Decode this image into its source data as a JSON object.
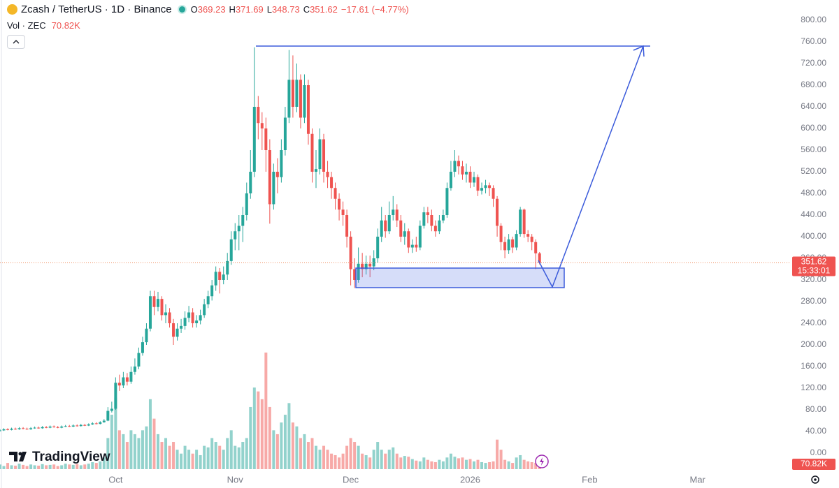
{
  "brand": "TradingView",
  "chart_data": {
    "type": "candlestick",
    "title": "Zcash / TetherUS · 1D · Binance",
    "ohlc_letters": [
      "O",
      "H",
      "L",
      "C"
    ],
    "change": "−17.61 (−4.77%)",
    "countdown": "15:33:01",
    "up_color": "#26a69a",
    "down_color": "#ef5350",
    "grid": false,
    "xlim": [
      0,
      205
    ],
    "xticks": [
      {
        "value": 30,
        "label": "Oct"
      },
      {
        "value": 61,
        "label": "Nov"
      },
      {
        "value": 91,
        "label": "Dec"
      },
      {
        "value": 122,
        "label": "2026"
      },
      {
        "value": 153,
        "label": "Feb"
      },
      {
        "value": 181,
        "label": "Mar"
      }
    ],
    "ylim": [
      0,
      800
    ],
    "yticks": [
      {
        "value": 0,
        "label": "0.00"
      },
      {
        "value": 40,
        "label": "40.00"
      },
      {
        "value": 80,
        "label": "80.00"
      },
      {
        "value": 120,
        "label": "120.00"
      },
      {
        "value": 160,
        "label": "160.00"
      },
      {
        "value": 200,
        "label": "200.00"
      },
      {
        "value": 240,
        "label": "240.00"
      },
      {
        "value": 280,
        "label": "280.00"
      },
      {
        "value": 320,
        "label": "320.00"
      },
      {
        "value": 360,
        "label": "360.00"
      },
      {
        "value": 400,
        "label": "400.00"
      },
      {
        "value": 440,
        "label": "440.00"
      },
      {
        "value": 480,
        "label": "480.00"
      },
      {
        "value": 520,
        "label": "520.00"
      },
      {
        "value": 560,
        "label": "560.00"
      },
      {
        "value": 600,
        "label": "600.00"
      },
      {
        "value": 640,
        "label": "640.00"
      },
      {
        "value": 680,
        "label": "680.00"
      },
      {
        "value": 720,
        "label": "720.00"
      },
      {
        "value": 760,
        "label": "760.00"
      },
      {
        "value": 800,
        "label": "800.00"
      }
    ],
    "candles": {
      "open": [
        41,
        42,
        44,
        43,
        45,
        44,
        46,
        45,
        44,
        46,
        47,
        46,
        48,
        47,
        49,
        48,
        47,
        49,
        50,
        49,
        51,
        50,
        52,
        51,
        53,
        55,
        54,
        57,
        60,
        78,
        82,
        130,
        125,
        140,
        132,
        150,
        160,
        185,
        205,
        230,
        290,
        270,
        285,
        255,
        260,
        240,
        215,
        230,
        235,
        250,
        260,
        240,
        245,
        255,
        275,
        290,
        310,
        335,
        320,
        330,
        355,
        395,
        410,
        420,
        440,
        480,
        520,
        640,
        610,
        600,
        560,
        460,
        520,
        510,
        560,
        620,
        690,
        640,
        690,
        620,
        680,
        590,
        520,
        525,
        580,
        520,
        510,
        490,
        470,
        450,
        440,
        400,
        340,
        320,
        350,
        340,
        350,
        345,
        360,
        400,
        430,
        410,
        440,
        450,
        430,
        400,
        410,
        380,
        385,
        380,
        420,
        445,
        440,
        420,
        410,
        430,
        440,
        490,
        520,
        540,
        530,
        515,
        520,
        500,
        510,
        485,
        490,
        495,
        490,
        470,
        420,
        390,
        375,
        395,
        380,
        405,
        450,
        405,
        400,
        390,
        369.23
      ],
      "high": [
        44,
        46,
        46,
        47,
        47,
        48,
        48,
        47,
        48,
        49,
        49,
        50,
        50,
        51,
        51,
        50,
        51,
        52,
        52,
        53,
        53,
        54,
        54,
        55,
        57,
        57,
        59,
        63,
        85,
        95,
        140,
        145,
        150,
        148,
        160,
        175,
        195,
        215,
        240,
        300,
        300,
        298,
        290,
        275,
        268,
        248,
        240,
        248,
        262,
        272,
        268,
        255,
        265,
        285,
        300,
        320,
        345,
        342,
        345,
        370,
        410,
        425,
        440,
        455,
        500,
        560,
        750,
        660,
        630,
        620,
        580,
        535,
        545,
        580,
        640,
        745,
        735,
        720,
        700,
        700,
        690,
        600,
        560,
        600,
        590,
        540,
        520,
        500,
        480,
        465,
        450,
        410,
        360,
        380,
        370,
        365,
        365,
        375,
        415,
        455,
        440,
        465,
        475,
        460,
        440,
        425,
        415,
        395,
        400,
        430,
        455,
        455,
        450,
        430,
        440,
        450,
        500,
        540,
        560,
        550,
        540,
        535,
        530,
        520,
        515,
        500,
        505,
        500,
        495,
        475,
        425,
        400,
        405,
        400,
        412,
        455,
        452,
        412,
        405,
        395,
        371.69
      ],
      "low": [
        40,
        41,
        42,
        42,
        43,
        43,
        44,
        43,
        43,
        45,
        45,
        45,
        46,
        46,
        47,
        46,
        46,
        48,
        48,
        48,
        49,
        49,
        50,
        50,
        52,
        53,
        53,
        56,
        59,
        75,
        80,
        115,
        120,
        125,
        128,
        145,
        155,
        180,
        200,
        225,
        255,
        262,
        245,
        240,
        232,
        200,
        208,
        222,
        228,
        242,
        232,
        232,
        238,
        250,
        268,
        282,
        300,
        295,
        312,
        320,
        348,
        375,
        375,
        390,
        430,
        470,
        510,
        580,
        560,
        520,
        424,
        450,
        480,
        500,
        550,
        610,
        620,
        630,
        600,
        610,
        570,
        500,
        490,
        515,
        500,
        490,
        470,
        450,
        430,
        420,
        380,
        310,
        305,
        315,
        325,
        330,
        325,
        338,
        352,
        390,
        398,
        405,
        430,
        418,
        390,
        385,
        370,
        370,
        372,
        375,
        415,
        425,
        410,
        400,
        405,
        425,
        435,
        485,
        510,
        515,
        505,
        500,
        490,
        492,
        475,
        478,
        480,
        475,
        455,
        400,
        375,
        360,
        368,
        370,
        375,
        400,
        398,
        390,
        375,
        340,
        348.73
      ],
      "close": [
        42,
        44,
        43,
        45,
        44,
        46,
        45,
        44,
        46,
        47,
        46,
        48,
        47,
        49,
        48,
        47,
        49,
        50,
        49,
        51,
        50,
        52,
        51,
        53,
        55,
        54,
        57,
        60,
        78,
        82,
        130,
        125,
        140,
        132,
        150,
        160,
        185,
        205,
        230,
        290,
        270,
        285,
        255,
        260,
        240,
        215,
        230,
        235,
        250,
        260,
        240,
        245,
        255,
        275,
        290,
        310,
        335,
        320,
        330,
        355,
        395,
        410,
        420,
        440,
        480,
        520,
        640,
        610,
        600,
        560,
        460,
        520,
        510,
        560,
        620,
        690,
        640,
        690,
        620,
        680,
        590,
        520,
        525,
        580,
        520,
        510,
        490,
        470,
        450,
        440,
        400,
        340,
        320,
        350,
        340,
        350,
        345,
        360,
        400,
        430,
        410,
        440,
        450,
        430,
        400,
        410,
        380,
        385,
        380,
        420,
        445,
        440,
        420,
        410,
        430,
        440,
        490,
        520,
        540,
        530,
        515,
        520,
        500,
        510,
        485,
        490,
        495,
        490,
        470,
        420,
        390,
        375,
        395,
        380,
        405,
        450,
        405,
        400,
        390,
        369.23,
        351.62
      ]
    },
    "volume": {
      "name": "Vol · ZEC",
      "label": "70.82K",
      "vlim": [
        0,
        1500
      ],
      "values": [
        60,
        40,
        80,
        50,
        45,
        70,
        55,
        40,
        60,
        50,
        45,
        65,
        50,
        55,
        60,
        40,
        50,
        70,
        60,
        55,
        65,
        50,
        60,
        70,
        90,
        80,
        100,
        150,
        400,
        700,
        920,
        500,
        450,
        350,
        500,
        450,
        400,
        500,
        550,
        900,
        650,
        450,
        350,
        400,
        300,
        350,
        250,
        200,
        300,
        250,
        200,
        250,
        180,
        300,
        280,
        400,
        350,
        300,
        250,
        400,
        500,
        300,
        280,
        350,
        400,
        800,
        1050,
        1000,
        900,
        1500,
        800,
        500,
        450,
        600,
        700,
        850,
        600,
        550,
        400,
        450,
        350,
        400,
        300,
        250,
        300,
        250,
        200,
        180,
        150,
        200,
        300,
        400,
        350,
        300,
        200,
        180,
        150,
        250,
        350,
        250,
        200,
        250,
        280,
        200,
        150,
        170,
        160,
        130,
        110,
        100,
        150,
        120,
        100,
        90,
        120,
        100,
        150,
        200,
        160,
        140,
        150,
        120,
        130,
        100,
        120,
        90,
        80,
        90,
        100,
        380,
        250,
        120,
        100,
        80,
        150,
        180,
        120,
        100,
        90,
        80,
        70.82
      ]
    }
  }
}
